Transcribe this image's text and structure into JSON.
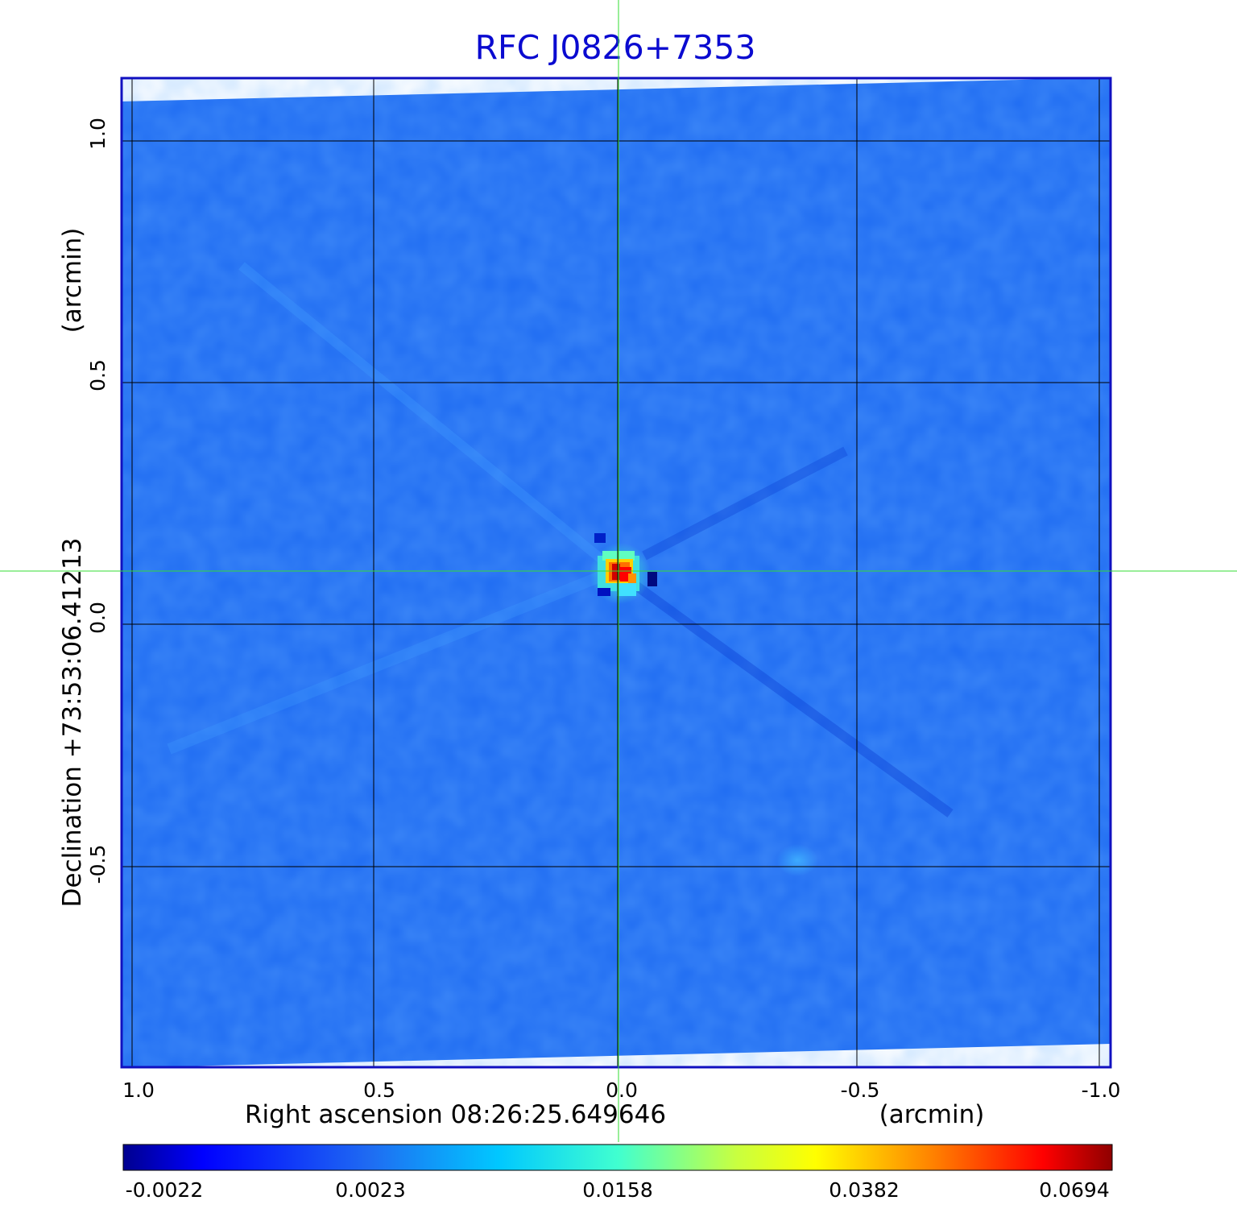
{
  "title": "RFC J0826+7353",
  "x_axis": {
    "label": "Right ascension  08:26:25.649646",
    "unit": "(arcmin)",
    "ticks": [
      "1.0",
      "0.5",
      "0.0",
      "-0.5",
      "-1.0"
    ]
  },
  "y_axis": {
    "label": "Declination  +73:53:06.41213",
    "unit": "(arcmin)",
    "ticks": [
      "1.0",
      "0.5",
      "0.0",
      "-0.5"
    ]
  },
  "colorbar": {
    "ticks": [
      "-0.0022",
      "0.0023",
      "0.0158",
      "0.0382",
      "0.0694"
    ]
  },
  "colors": {
    "frame": "#1010c0",
    "title": "#0a0ad0",
    "background_field": "#1f6cf2",
    "crosshair": "#33dd33",
    "grid": "#000000"
  }
}
